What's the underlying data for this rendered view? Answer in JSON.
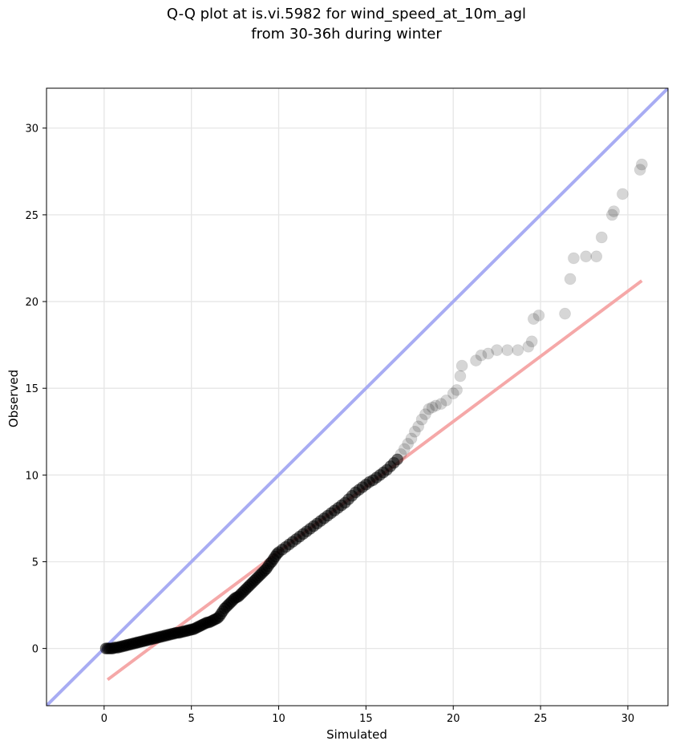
{
  "chart_data": {
    "type": "scatter",
    "title": "Q-Q plot at is.vi.5982 for wind_speed_at_10m_agl",
    "subtitle": "from 30-36h during winter",
    "xlabel": "Simulated",
    "ylabel": "Observed",
    "xlim": [
      -3.3,
      32.3
    ],
    "ylim": [
      -3.3,
      32.3
    ],
    "xticks": [
      0,
      5,
      10,
      15,
      20,
      25,
      30
    ],
    "yticks": [
      0,
      5,
      10,
      15,
      20,
      25,
      30
    ],
    "grid": true,
    "reference_line": {
      "slope": 1,
      "intercept": 0,
      "color": "#a8acf3"
    },
    "fit_line": {
      "x": [
        0.2,
        30.8
      ],
      "y": [
        -1.8,
        21.2
      ],
      "color": "#f5a8a8"
    },
    "point_color": "#000000",
    "points": [
      [
        0.1,
        0.0
      ],
      [
        0.2,
        0.0
      ],
      [
        0.3,
        0.0
      ],
      [
        0.4,
        0.0
      ],
      [
        0.5,
        0.0
      ],
      [
        0.6,
        0.05
      ],
      [
        0.7,
        0.05
      ],
      [
        0.8,
        0.05
      ],
      [
        0.9,
        0.1
      ],
      [
        1.0,
        0.1
      ],
      [
        1.1,
        0.15
      ],
      [
        1.2,
        0.15
      ],
      [
        1.3,
        0.2
      ],
      [
        1.4,
        0.2
      ],
      [
        1.5,
        0.25
      ],
      [
        1.6,
        0.25
      ],
      [
        1.7,
        0.3
      ],
      [
        1.8,
        0.3
      ],
      [
        1.9,
        0.35
      ],
      [
        2.0,
        0.35
      ],
      [
        2.1,
        0.4
      ],
      [
        2.2,
        0.4
      ],
      [
        2.3,
        0.45
      ],
      [
        2.4,
        0.45
      ],
      [
        2.5,
        0.5
      ],
      [
        2.6,
        0.5
      ],
      [
        2.7,
        0.55
      ],
      [
        2.8,
        0.55
      ],
      [
        2.9,
        0.6
      ],
      [
        3.0,
        0.6
      ],
      [
        3.1,
        0.65
      ],
      [
        3.2,
        0.65
      ],
      [
        3.3,
        0.7
      ],
      [
        3.4,
        0.7
      ],
      [
        3.5,
        0.75
      ],
      [
        3.6,
        0.75
      ],
      [
        3.7,
        0.8
      ],
      [
        3.8,
        0.8
      ],
      [
        3.9,
        0.85
      ],
      [
        4.0,
        0.85
      ],
      [
        4.1,
        0.9
      ],
      [
        4.2,
        0.9
      ],
      [
        4.3,
        0.9
      ],
      [
        4.4,
        0.95
      ],
      [
        4.5,
        0.95
      ],
      [
        4.6,
        1.0
      ],
      [
        4.7,
        1.0
      ],
      [
        4.8,
        1.05
      ],
      [
        4.9,
        1.05
      ],
      [
        5.0,
        1.1
      ],
      [
        5.1,
        1.1
      ],
      [
        5.2,
        1.15
      ],
      [
        5.3,
        1.2
      ],
      [
        5.4,
        1.25
      ],
      [
        5.5,
        1.3
      ],
      [
        5.6,
        1.35
      ],
      [
        5.7,
        1.4
      ],
      [
        5.8,
        1.45
      ],
      [
        5.9,
        1.5
      ],
      [
        6.0,
        1.5
      ],
      [
        6.1,
        1.55
      ],
      [
        6.2,
        1.6
      ],
      [
        6.3,
        1.65
      ],
      [
        6.4,
        1.7
      ],
      [
        6.5,
        1.75
      ],
      [
        6.6,
        1.85
      ],
      [
        6.7,
        2.0
      ],
      [
        6.8,
        2.15
      ],
      [
        6.9,
        2.3
      ],
      [
        7.0,
        2.4
      ],
      [
        7.1,
        2.5
      ],
      [
        7.2,
        2.6
      ],
      [
        7.3,
        2.7
      ],
      [
        7.4,
        2.8
      ],
      [
        7.5,
        2.9
      ],
      [
        7.6,
        2.95
      ],
      [
        7.7,
        3.0
      ],
      [
        7.8,
        3.1
      ],
      [
        7.9,
        3.2
      ],
      [
        8.0,
        3.3
      ],
      [
        8.1,
        3.4
      ],
      [
        8.2,
        3.5
      ],
      [
        8.3,
        3.6
      ],
      [
        8.4,
        3.7
      ],
      [
        8.5,
        3.8
      ],
      [
        8.6,
        3.9
      ],
      [
        8.7,
        4.0
      ],
      [
        8.8,
        4.1
      ],
      [
        8.9,
        4.2
      ],
      [
        9.0,
        4.3
      ],
      [
        9.1,
        4.4
      ],
      [
        9.2,
        4.5
      ],
      [
        9.3,
        4.6
      ],
      [
        9.4,
        4.75
      ],
      [
        9.5,
        4.9
      ],
      [
        9.6,
        5.0
      ],
      [
        9.7,
        5.15
      ],
      [
        9.8,
        5.3
      ],
      [
        9.9,
        5.45
      ],
      [
        10.0,
        5.55
      ],
      [
        10.2,
        5.7
      ],
      [
        10.4,
        5.85
      ],
      [
        10.6,
        6.0
      ],
      [
        10.8,
        6.15
      ],
      [
        11.0,
        6.3
      ],
      [
        11.2,
        6.45
      ],
      [
        11.4,
        6.6
      ],
      [
        11.6,
        6.75
      ],
      [
        11.8,
        6.9
      ],
      [
        12.0,
        7.05
      ],
      [
        12.2,
        7.2
      ],
      [
        12.4,
        7.35
      ],
      [
        12.6,
        7.5
      ],
      [
        12.8,
        7.65
      ],
      [
        13.0,
        7.8
      ],
      [
        13.2,
        7.95
      ],
      [
        13.4,
        8.1
      ],
      [
        13.6,
        8.25
      ],
      [
        13.8,
        8.4
      ],
      [
        14.0,
        8.6
      ],
      [
        14.2,
        8.8
      ],
      [
        14.4,
        9.0
      ],
      [
        14.6,
        9.15
      ],
      [
        14.8,
        9.3
      ],
      [
        15.0,
        9.45
      ],
      [
        15.2,
        9.6
      ],
      [
        15.4,
        9.7
      ],
      [
        15.6,
        9.85
      ],
      [
        15.8,
        10.0
      ],
      [
        16.0,
        10.15
      ],
      [
        16.2,
        10.3
      ],
      [
        16.4,
        10.5
      ],
      [
        16.6,
        10.7
      ],
      [
        16.8,
        10.9
      ],
      [
        17.0,
        11.2
      ],
      [
        17.2,
        11.5
      ],
      [
        17.4,
        11.8
      ],
      [
        17.6,
        12.1
      ],
      [
        17.8,
        12.5
      ],
      [
        18.0,
        12.8
      ],
      [
        18.2,
        13.2
      ],
      [
        18.4,
        13.5
      ],
      [
        18.6,
        13.8
      ],
      [
        18.8,
        13.9
      ],
      [
        19.0,
        14.0
      ],
      [
        19.3,
        14.1
      ],
      [
        19.6,
        14.3
      ],
      [
        20.0,
        14.7
      ],
      [
        20.2,
        14.9
      ],
      [
        20.4,
        15.7
      ],
      [
        20.5,
        16.3
      ],
      [
        21.3,
        16.6
      ],
      [
        21.6,
        16.9
      ],
      [
        22.0,
        17.0
      ],
      [
        22.5,
        17.2
      ],
      [
        23.1,
        17.2
      ],
      [
        23.7,
        17.2
      ],
      [
        24.3,
        17.4
      ],
      [
        24.5,
        17.7
      ],
      [
        24.6,
        19.0
      ],
      [
        24.9,
        19.2
      ],
      [
        26.4,
        19.3
      ],
      [
        26.7,
        21.3
      ],
      [
        26.9,
        22.5
      ],
      [
        27.6,
        22.6
      ],
      [
        28.2,
        22.6
      ],
      [
        28.5,
        23.7
      ],
      [
        29.1,
        25.0
      ],
      [
        29.2,
        25.2
      ],
      [
        29.7,
        26.2
      ],
      [
        30.7,
        27.6
      ],
      [
        30.8,
        27.9
      ]
    ]
  }
}
